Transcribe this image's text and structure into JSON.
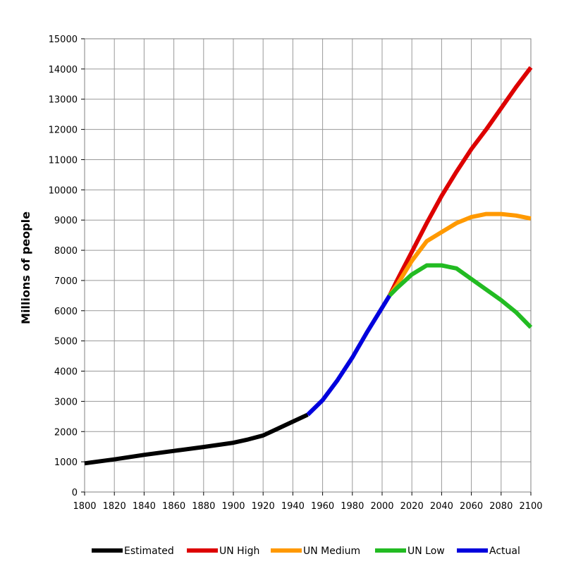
{
  "chart_data": {
    "type": "line",
    "title": "",
    "xlabel": "",
    "ylabel": "Millions of people",
    "xlim": [
      1800,
      2100
    ],
    "ylim": [
      0,
      15000
    ],
    "x_ticks": [
      1800,
      1820,
      1840,
      1860,
      1880,
      1900,
      1920,
      1940,
      1960,
      1980,
      2000,
      2020,
      2040,
      2060,
      2080,
      2100
    ],
    "y_ticks": [
      0,
      1000,
      2000,
      3000,
      4000,
      5000,
      6000,
      7000,
      8000,
      9000,
      10000,
      11000,
      12000,
      13000,
      14000,
      15000
    ],
    "grid": true,
    "legend_position": "bottom",
    "series": [
      {
        "name": "Estimated",
        "color": "#000000",
        "x": [
          1800,
          1820,
          1840,
          1860,
          1880,
          1890,
          1900,
          1910,
          1920,
          1930,
          1940,
          1950
        ],
        "y": [
          950,
          1080,
          1230,
          1360,
          1490,
          1560,
          1630,
          1740,
          1870,
          2100,
          2330,
          2560
        ]
      },
      {
        "name": "UN High",
        "color": "#dd0000",
        "x": [
          2005,
          2010,
          2020,
          2030,
          2040,
          2050,
          2060,
          2070,
          2080,
          2090,
          2100
        ],
        "y": [
          6500,
          7000,
          7950,
          8900,
          9800,
          10600,
          11350,
          12000,
          12700,
          13400,
          14050
        ]
      },
      {
        "name": "UN Medium",
        "color": "#ff9900",
        "x": [
          2005,
          2010,
          2020,
          2030,
          2040,
          2050,
          2060,
          2070,
          2080,
          2090,
          2100
        ],
        "y": [
          6500,
          6850,
          7650,
          8300,
          8600,
          8900,
          9100,
          9200,
          9200,
          9150,
          9050
        ]
      },
      {
        "name": "UN Low",
        "color": "#22bb22",
        "x": [
          2005,
          2010,
          2020,
          2030,
          2040,
          2050,
          2060,
          2070,
          2080,
          2090,
          2100
        ],
        "y": [
          6500,
          6750,
          7200,
          7500,
          7500,
          7400,
          7050,
          6700,
          6350,
          5950,
          5450
        ]
      },
      {
        "name": "Actual",
        "color": "#0000dd",
        "x": [
          1950,
          1960,
          1970,
          1980,
          1990,
          2000,
          2005
        ],
        "y": [
          2560,
          3040,
          3700,
          4450,
          5300,
          6100,
          6500
        ]
      }
    ]
  }
}
